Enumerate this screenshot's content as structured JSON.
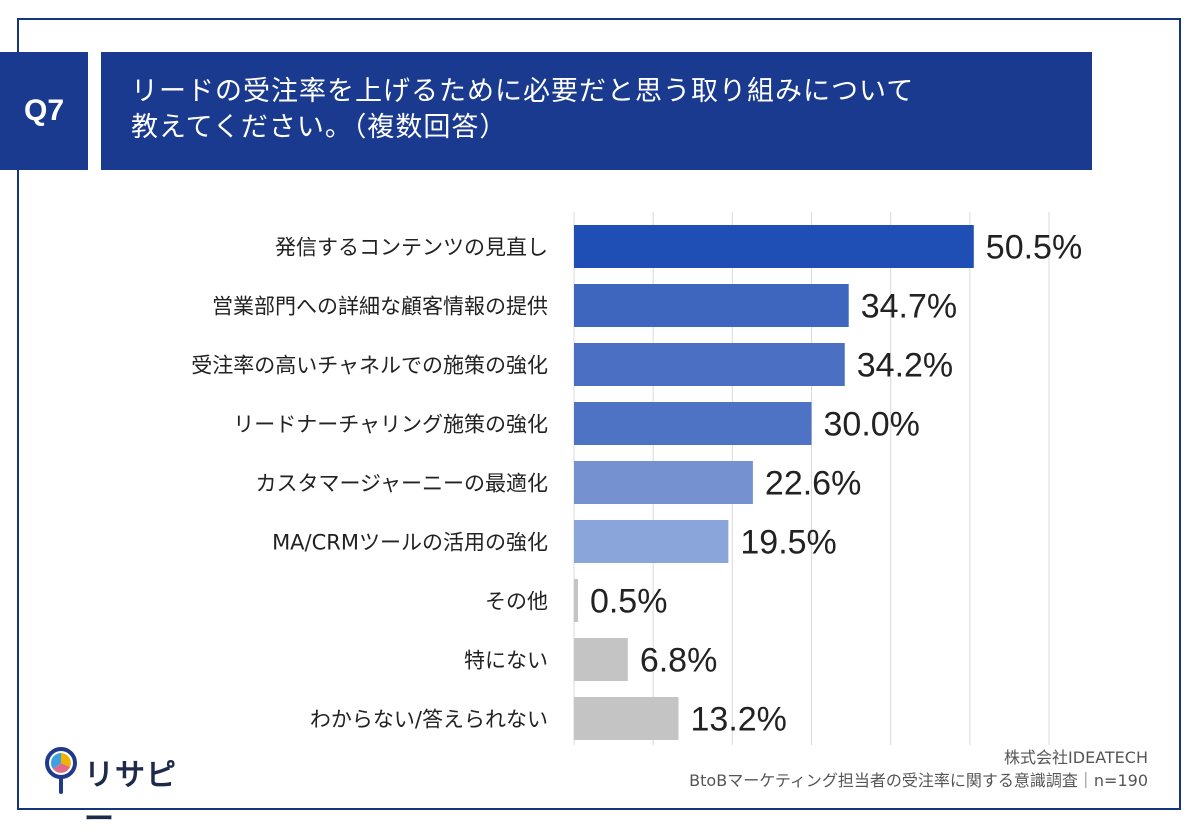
{
  "header": {
    "question_number": "Q7",
    "title_line1": "リードの受注率を上げるために必要だと思う取り組みについて",
    "title_line2": "教えてください。（複数回答）"
  },
  "footer": {
    "company": "株式会社IDEATECH",
    "survey": "BtoBマーケティング担当者の受注率に関する意識調査｜n=190"
  },
  "logo": {
    "text": "リサピー",
    "icon": "pin-pie-icon"
  },
  "colors": {
    "title_bg": "#1a3a8f",
    "grey_bar": "#c4c4c4"
  },
  "chart_data": {
    "type": "bar",
    "orientation": "horizontal",
    "categories": [
      "発信するコンテンツの見直し",
      "営業部門への詳細な顧客情報の提供",
      "受注率の高いチャネルでの施策の強化",
      "リードナーチャリング施策の強化",
      "カスタマージャーニーの最適化",
      "MA/CRMツールの活用の強化",
      "その他",
      "特にない",
      "わからない/答えられない"
    ],
    "values": [
      50.5,
      34.7,
      34.2,
      30.0,
      22.6,
      19.5,
      0.5,
      6.8,
      13.2
    ],
    "labels": [
      "50.5%",
      "34.7%",
      "34.2%",
      "30.0%",
      "22.6%",
      "19.5%",
      "0.5%",
      "6.8%",
      "13.2%"
    ],
    "bar_colors": [
      "#1f4fb5",
      "#3f66bf",
      "#4a6fc3",
      "#4f73c4",
      "#7691cf",
      "#8aa5da",
      "#c4c4c4",
      "#c4c4c4",
      "#c4c4c4"
    ],
    "xlim": [
      0,
      60
    ],
    "grid": true,
    "unit": "%"
  }
}
